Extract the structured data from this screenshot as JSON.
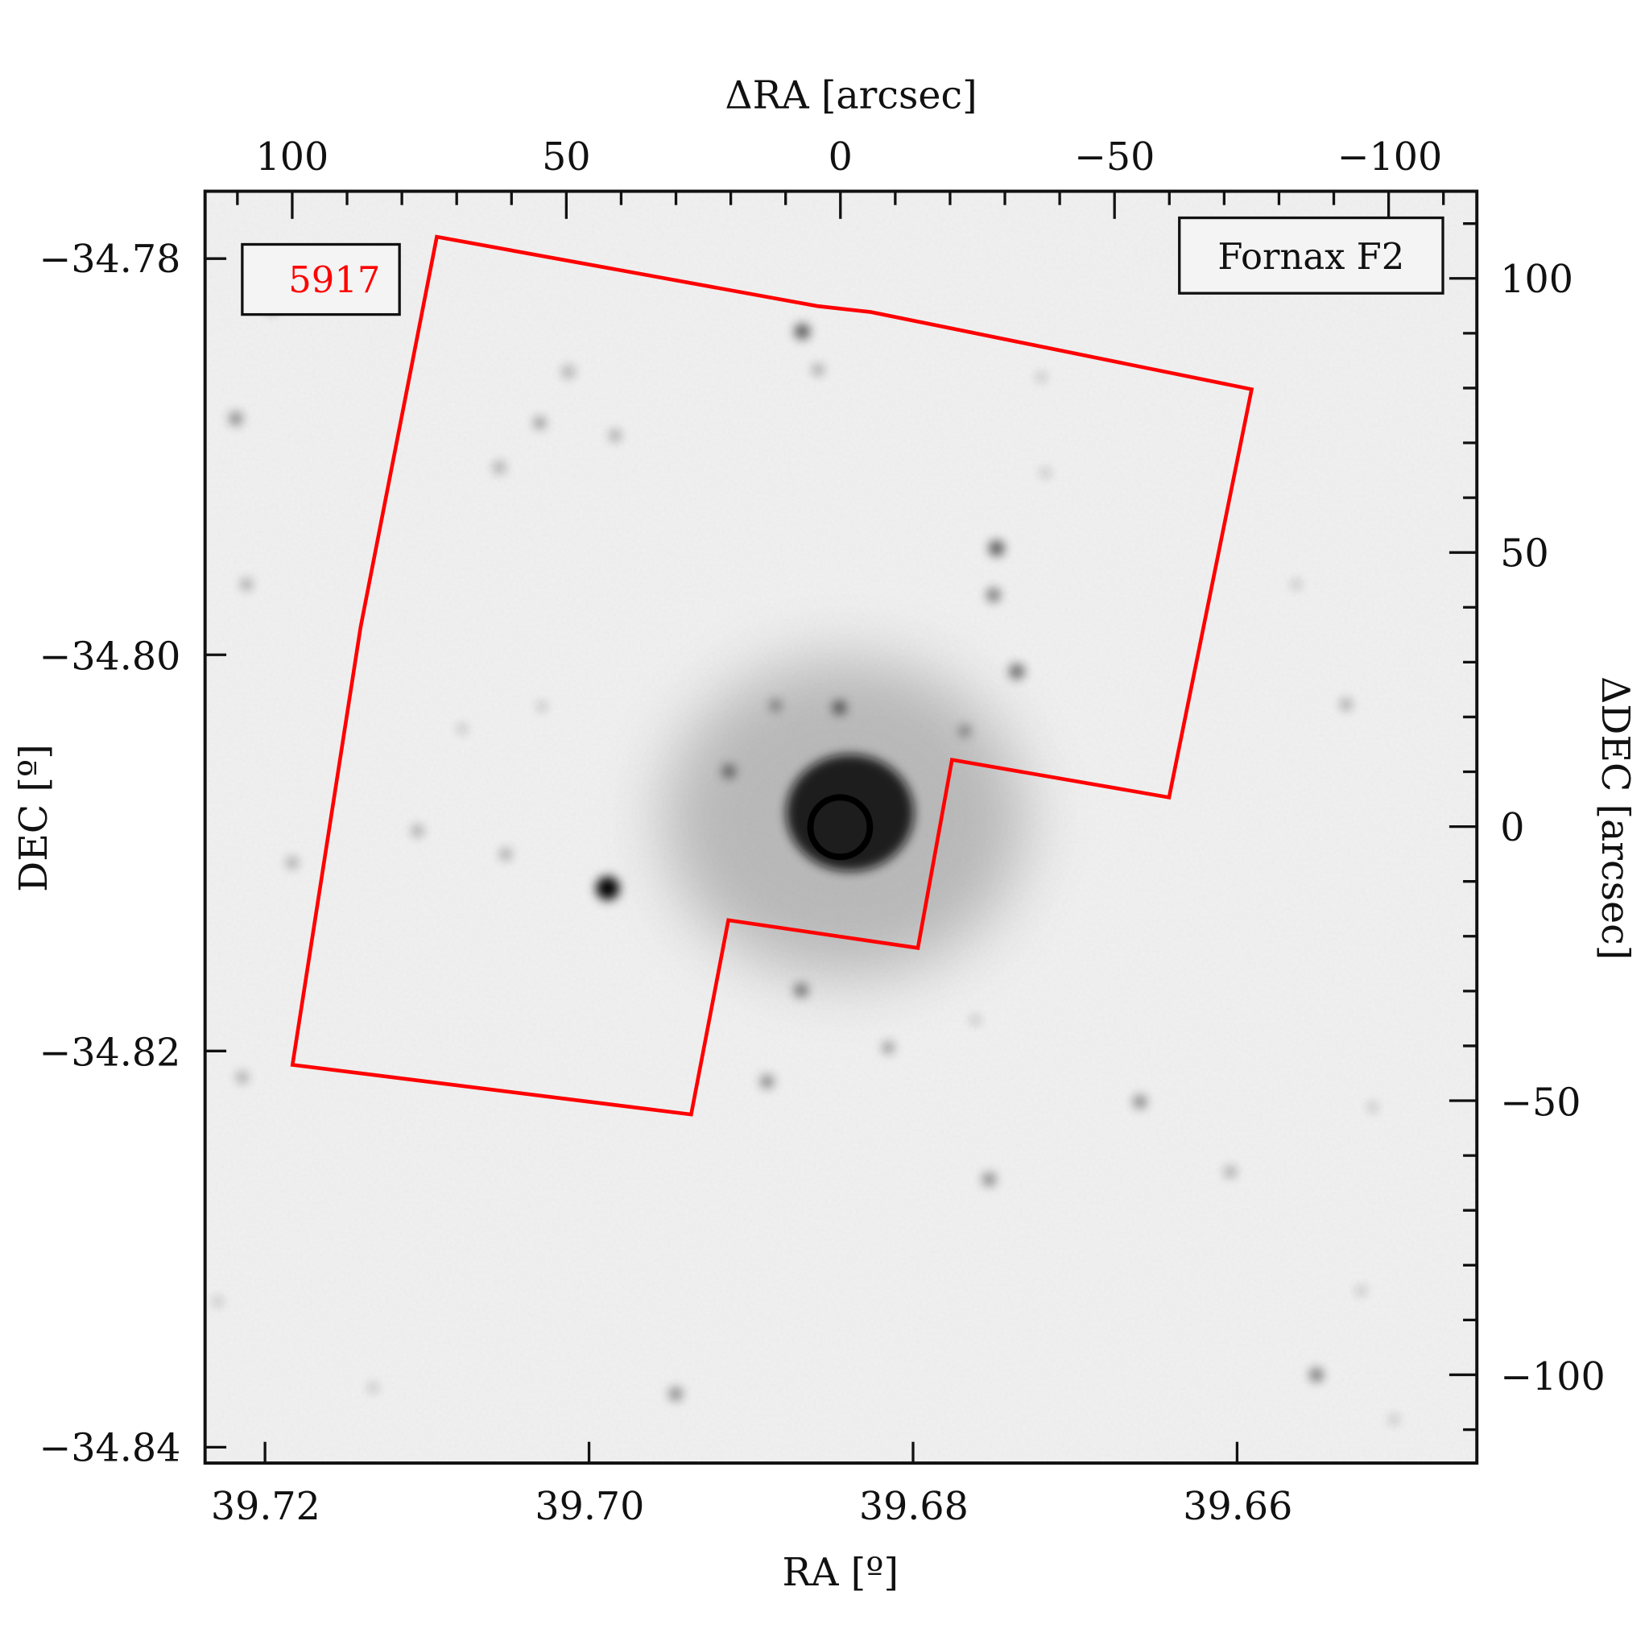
{
  "chart_data": {
    "type": "image-overlay",
    "xlabel_bottom": "RA [º]",
    "ylabel_left": "DEC [º]",
    "xlabel_top": "ΔRA [arcsec]",
    "ylabel_right": "ΔDEC [arcsec]",
    "xlim_bottom": [
      39.7237,
      39.6452
    ],
    "ylim_left": [
      -34.8408,
      -34.7766
    ],
    "xlim_top": [
      115.9,
      -116.1
    ],
    "ylim_right": [
      -116.1,
      115.9
    ],
    "bottom_ticks": [
      "39.72",
      "39.70",
      "39.68",
      "39.66"
    ],
    "left_ticks": [
      "−34.78",
      "−34.80",
      "−34.82",
      "−34.84"
    ],
    "top_ticks": [
      "100",
      "50",
      "0",
      "−50",
      "−100"
    ],
    "right_ticks": [
      "100",
      "50",
      "0",
      "−50",
      "−100"
    ],
    "grid": false,
    "colormap": "inverted grayscale",
    "footprint": {
      "color": "#ff0000",
      "vertices_ra_dec": [
        [
          39.7094,
          -34.7789
        ],
        [
          39.6859,
          -34.7824
        ],
        [
          39.6826,
          -34.7827
        ],
        [
          39.6591,
          -34.7866
        ],
        [
          39.6642,
          -34.8072
        ],
        [
          39.6776,
          -34.8053
        ],
        [
          39.6797,
          -34.8148
        ],
        [
          39.6914,
          -34.8134
        ],
        [
          39.6937,
          -34.8232
        ],
        [
          39.7183,
          -34.8207
        ],
        [
          39.7141,
          -34.7986
        ]
      ]
    },
    "target_marker": {
      "ra": 39.6845,
      "dec": -34.8087,
      "color": "#000000"
    },
    "annotations": {
      "id_label": "5917",
      "id_color": "#ff0000",
      "field_label": "Fornax F2"
    }
  }
}
